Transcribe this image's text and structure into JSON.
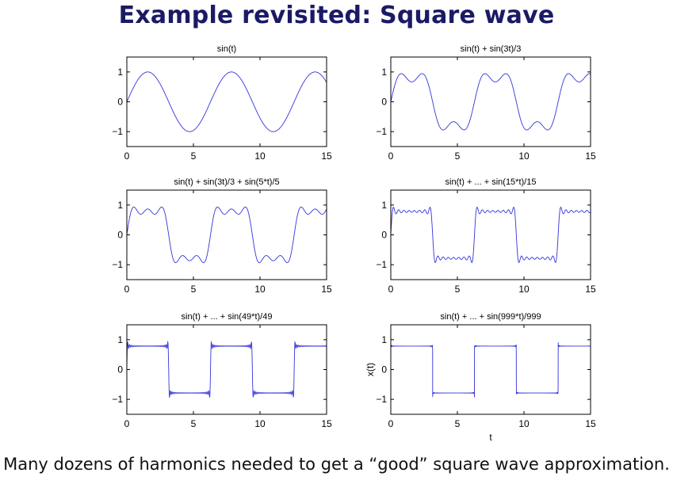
{
  "slide": {
    "title": "Example revisited: Square wave",
    "caption": "Many dozens of harmonics needed to get a “good” square wave approximation."
  },
  "colors": {
    "line": "#3333dd",
    "title": "#1a1a66",
    "axis": "#000000"
  },
  "chart_data": [
    {
      "type": "line",
      "title": "sin(t)",
      "harmonics": [
        1
      ],
      "xlim": [
        0,
        15
      ],
      "ylim": [
        -1.5,
        1.5
      ],
      "xticks": [
        0,
        5,
        10,
        15
      ],
      "yticks": [
        -1,
        0,
        1
      ],
      "xlabel": "",
      "ylabel": "",
      "grid": false
    },
    {
      "type": "line",
      "title": "sin(t) + sin(3t)/3",
      "harmonics": [
        1,
        3
      ],
      "xlim": [
        0,
        15
      ],
      "ylim": [
        -1.5,
        1.5
      ],
      "xticks": [
        0,
        5,
        10,
        15
      ],
      "yticks": [
        -1,
        0,
        1
      ],
      "xlabel": "",
      "ylabel": "",
      "grid": false
    },
    {
      "type": "line",
      "title": "sin(t) + sin(3t)/3 + sin(5*t)/5",
      "harmonics": [
        1,
        3,
        5
      ],
      "xlim": [
        0,
        15
      ],
      "ylim": [
        -1.5,
        1.5
      ],
      "xticks": [
        0,
        5,
        10,
        15
      ],
      "yticks": [
        -1,
        0,
        1
      ],
      "xlabel": "",
      "ylabel": "",
      "grid": false
    },
    {
      "type": "line",
      "title": "sin(t) + ... + sin(15*t)/15",
      "harmonics": [
        1,
        3,
        5,
        7,
        9,
        11,
        13,
        15
      ],
      "xlim": [
        0,
        15
      ],
      "ylim": [
        -1.5,
        1.5
      ],
      "xticks": [
        0,
        5,
        10,
        15
      ],
      "yticks": [
        -1,
        0,
        1
      ],
      "xlabel": "",
      "ylabel": "",
      "grid": false
    },
    {
      "type": "line",
      "title": "sin(t) + ... + sin(49*t)/49",
      "harmonic_max": 49,
      "xlim": [
        0,
        15
      ],
      "ylim": [
        -1.5,
        1.5
      ],
      "xticks": [
        0,
        5,
        10,
        15
      ],
      "yticks": [
        -1,
        0,
        1
      ],
      "xlabel": "",
      "ylabel": "",
      "grid": false
    },
    {
      "type": "line",
      "title": "sin(t) + ... + sin(999*t)/999",
      "harmonic_max": 999,
      "xlim": [
        0,
        15
      ],
      "ylim": [
        -1.5,
        1.5
      ],
      "xticks": [
        0,
        5,
        10,
        15
      ],
      "yticks": [
        -1,
        0,
        1
      ],
      "xlabel": "t",
      "ylabel": "x(t)",
      "grid": false
    }
  ]
}
